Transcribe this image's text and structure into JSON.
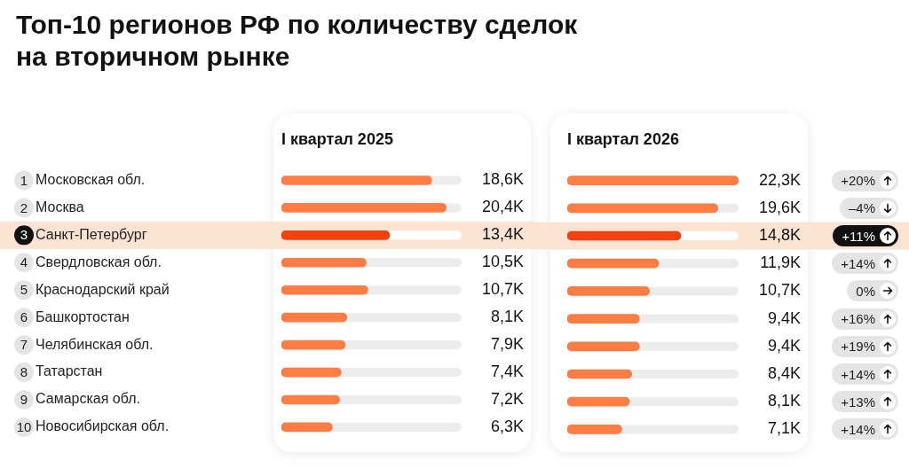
{
  "chart_data": [
    {
      "type": "other",
      "title": "Топ-10 регионов РФ по количеству сделок на вторичном рынке"
    },
    {
      "type": "bar",
      "orientation": "horizontal",
      "title": "I квартал 2025",
      "categories": [
        "Московская обл.",
        "Москва",
        "Санкт-Петербург",
        "Свердловская обл.",
        "Краснодарский край",
        "Башкортостан",
        "Челябинская обл.",
        "Татарстан",
        "Самарская обл.",
        "Новосибирская обл."
      ],
      "values": [
        18.6,
        20.4,
        13.4,
        10.5,
        10.7,
        8.1,
        7.9,
        7.4,
        7.2,
        6.3
      ],
      "colors": [
        "#ff7d45",
        "#ff7d45",
        "#f5400f",
        "#ff7d45",
        "#ff7d45",
        "#ff7d45",
        "#ff7d45",
        "#ff7d45",
        "#ff7d45",
        "#ff7d45"
      ],
      "value_labels": [
        "18,6K",
        "20,4K",
        "13,4K",
        "10,5K",
        "10,7K",
        "8,1K",
        "7,9K",
        "7,4K",
        "7,2K",
        "6,3K"
      ],
      "xlim": [
        0,
        22.3
      ],
      "bands": [
        {
          "axis": "y",
          "from": "Санкт-Петербург",
          "to": "Санкт-Петербург",
          "color": "#fde3d2"
        }
      ],
      "annotations": [
        "1",
        "2",
        "3",
        "4",
        "5",
        "6",
        "7",
        "8",
        "9",
        "10"
      ]
    },
    {
      "type": "bar",
      "orientation": "horizontal",
      "title": "I квартал 2026",
      "categories": [
        "Московская обл.",
        "Москва",
        "Санкт-Петербург",
        "Свердловская обл.",
        "Краснодарский край",
        "Башкортостан",
        "Челябинская обл.",
        "Татарстан",
        "Самарская обл.",
        "Новосибирская обл."
      ],
      "tick_labels": false,
      "values": [
        22.3,
        19.6,
        14.8,
        11.9,
        10.7,
        9.4,
        9.4,
        8.4,
        8.1,
        7.1
      ],
      "colors": [
        "#ff7d45",
        "#ff7d45",
        "#f5400f",
        "#ff7d45",
        "#ff7d45",
        "#ff7d45",
        "#ff7d45",
        "#ff7d45",
        "#ff7d45",
        "#ff7d45"
      ],
      "value_labels": [
        "22,3K",
        "19,6K",
        "14,8K",
        "11,9K",
        "10,7K",
        "9,4K",
        "9,4K",
        "8,4K",
        "8,1K",
        "7,1K"
      ],
      "xlim": [
        0,
        22.3
      ],
      "bands": [
        {
          "axis": "y",
          "from": "Санкт-Петербург",
          "to": "Санкт-Петербург",
          "color": "#fde3d2"
        }
      ]
    },
    {
      "type": "other",
      "annotations": [
        "+20%",
        "–4%",
        "+11%",
        "+14%",
        "0%",
        "+16%",
        "+19%",
        "+14%",
        "+13%",
        "+14%"
      ]
    }
  ]
}
